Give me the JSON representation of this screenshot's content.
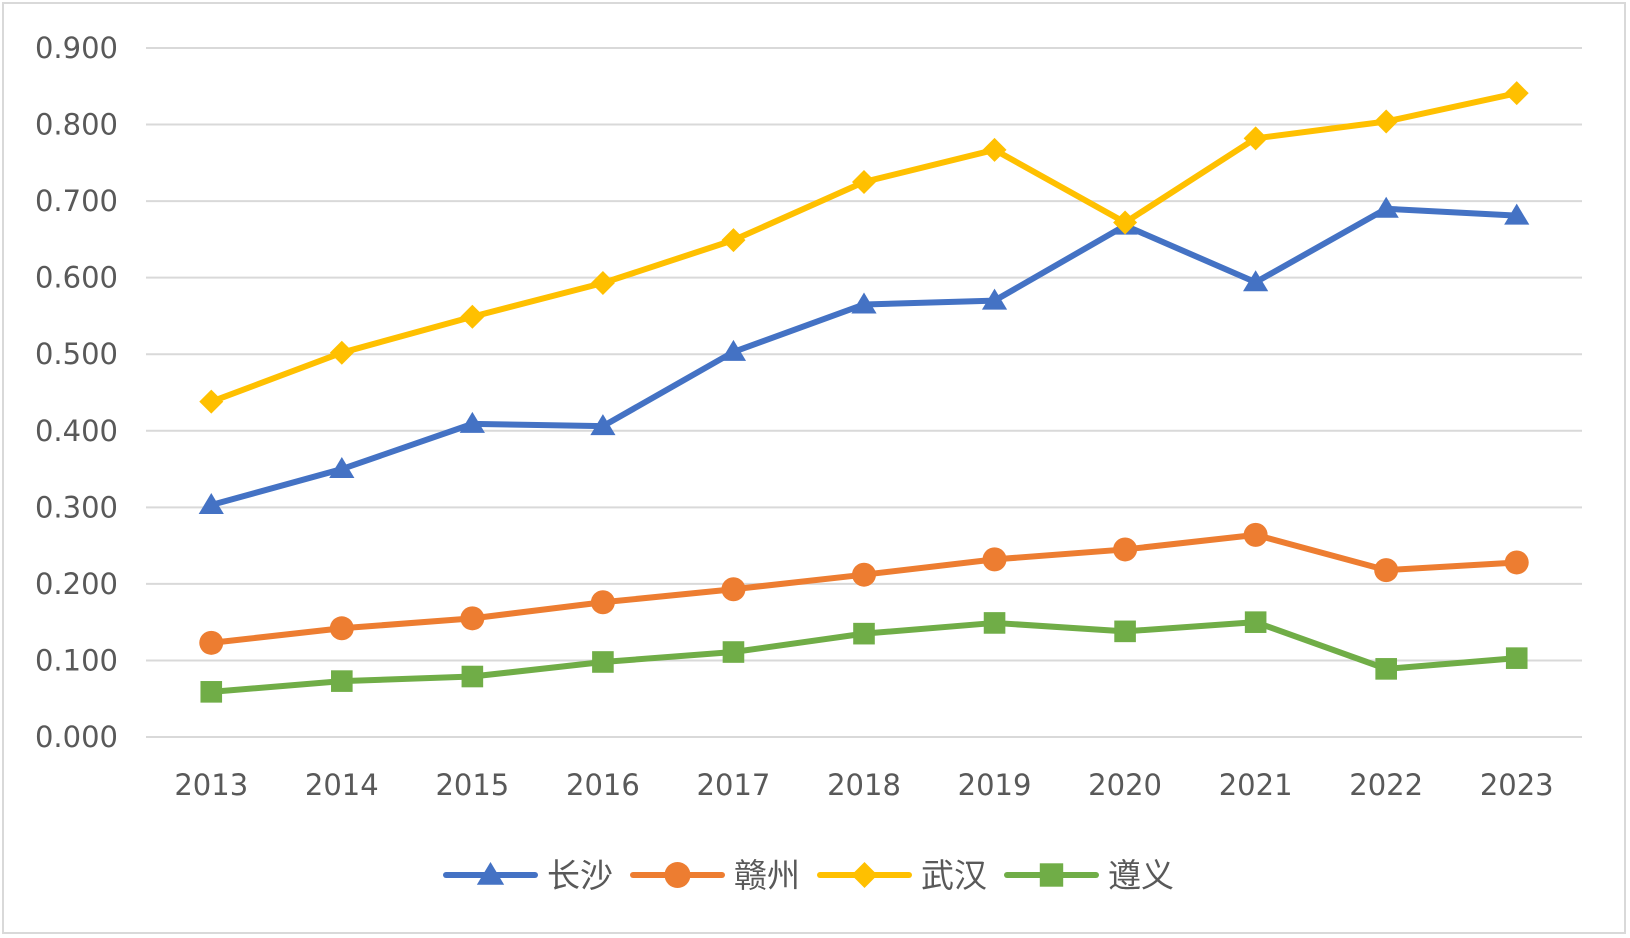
{
  "chart_data": {
    "type": "line",
    "title": "",
    "xlabel": "",
    "ylabel": "",
    "x": [
      "2013",
      "2014",
      "2015",
      "2016",
      "2017",
      "2018",
      "2019",
      "2020",
      "2021",
      "2022",
      "2023"
    ],
    "ylim": [
      0,
      0.9
    ],
    "yticks": [
      "0.000",
      "0.100",
      "0.200",
      "0.300",
      "0.400",
      "0.500",
      "0.600",
      "0.700",
      "0.800",
      "0.900"
    ],
    "grid": true,
    "legend_position": "bottom",
    "series": [
      {
        "name": "长沙",
        "color": "#4472c4",
        "marker": "triangle",
        "values": [
          0.303,
          0.35,
          0.409,
          0.406,
          0.503,
          0.565,
          0.57,
          0.668,
          0.594,
          0.69,
          0.681
        ]
      },
      {
        "name": "赣州",
        "color": "#ed7d31",
        "marker": "circle",
        "values": [
          0.123,
          0.142,
          0.155,
          0.176,
          0.193,
          0.212,
          0.232,
          0.245,
          0.264,
          0.218,
          0.228
        ]
      },
      {
        "name": "武汉",
        "color": "#ffc000",
        "marker": "diamond",
        "values": [
          0.438,
          0.502,
          0.549,
          0.593,
          0.649,
          0.725,
          0.767,
          0.672,
          0.782,
          0.804,
          0.841
        ]
      },
      {
        "name": "遵义",
        "color": "#70ad47",
        "marker": "square",
        "values": [
          0.059,
          0.073,
          0.079,
          0.098,
          0.111,
          0.135,
          0.149,
          0.138,
          0.15,
          0.089,
          0.103
        ]
      }
    ]
  }
}
